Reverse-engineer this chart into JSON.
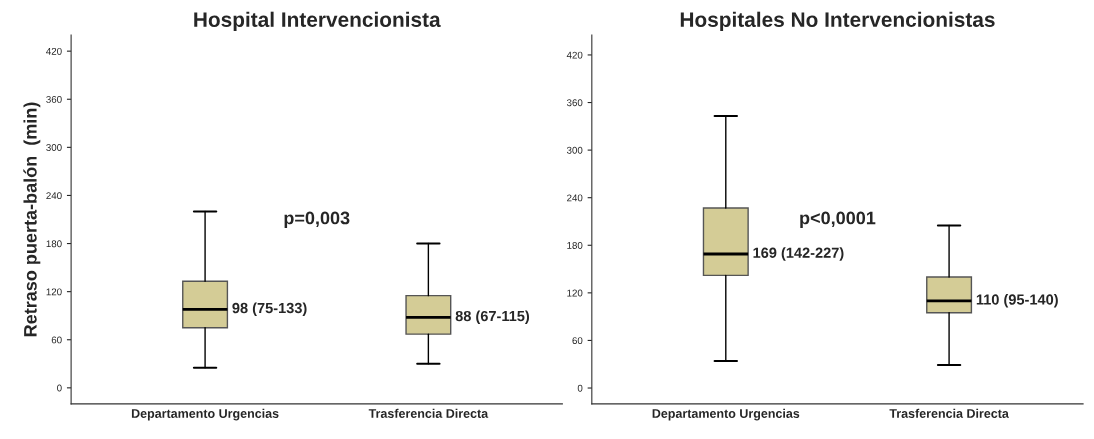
{
  "chart_data": [
    {
      "type": "box",
      "title": "Hospital Intervencionista",
      "ylabel": "Retraso puerta-balón  (min)",
      "categories": [
        "Departamento Urgencias",
        "Trasferencia Directa"
      ],
      "boxes": [
        {
          "low": 25,
          "q1": 75,
          "median": 98,
          "q3": 133,
          "high": 220
        },
        {
          "low": 30,
          "q1": 67,
          "median": 88,
          "q3": 115,
          "high": 180
        }
      ],
      "color": "#d4cc96",
      "ylim": [
        -20,
        440
      ],
      "yticks": [
        0,
        60,
        120,
        180,
        240,
        300,
        360,
        420
      ],
      "grid": false,
      "annotations": [
        "p=0,003",
        {
          "text": "98 (75-133)",
          "x": "Departamento Urgencias",
          "y": 98
        },
        {
          "text": "88 (67-115)",
          "x": "Trasferencia Directa",
          "y": 88
        }
      ]
    },
    {
      "type": "box",
      "title": "Hospitales No Intervencionistas",
      "categories": [
        "Departamento Urgencias",
        "Trasferencia Directa"
      ],
      "boxes": [
        {
          "low": 34,
          "q1": 142,
          "median": 169,
          "q3": 227,
          "high": 343
        },
        {
          "low": 29,
          "q1": 95,
          "median": 110,
          "q3": 140,
          "high": 205
        }
      ],
      "color": "#d4cc96",
      "ylim": [
        -20,
        445
      ],
      "yticks": [
        0,
        60,
        120,
        180,
        240,
        300,
        360,
        420
      ],
      "grid": false,
      "annotations": [
        "p<0,0001",
        {
          "text": "169 (142-227)",
          "x": "Departamento Urgencias",
          "y": 169
        },
        {
          "text": "110 (95-140)",
          "x": "Trasferencia Directa",
          "y": 110
        }
      ]
    }
  ]
}
